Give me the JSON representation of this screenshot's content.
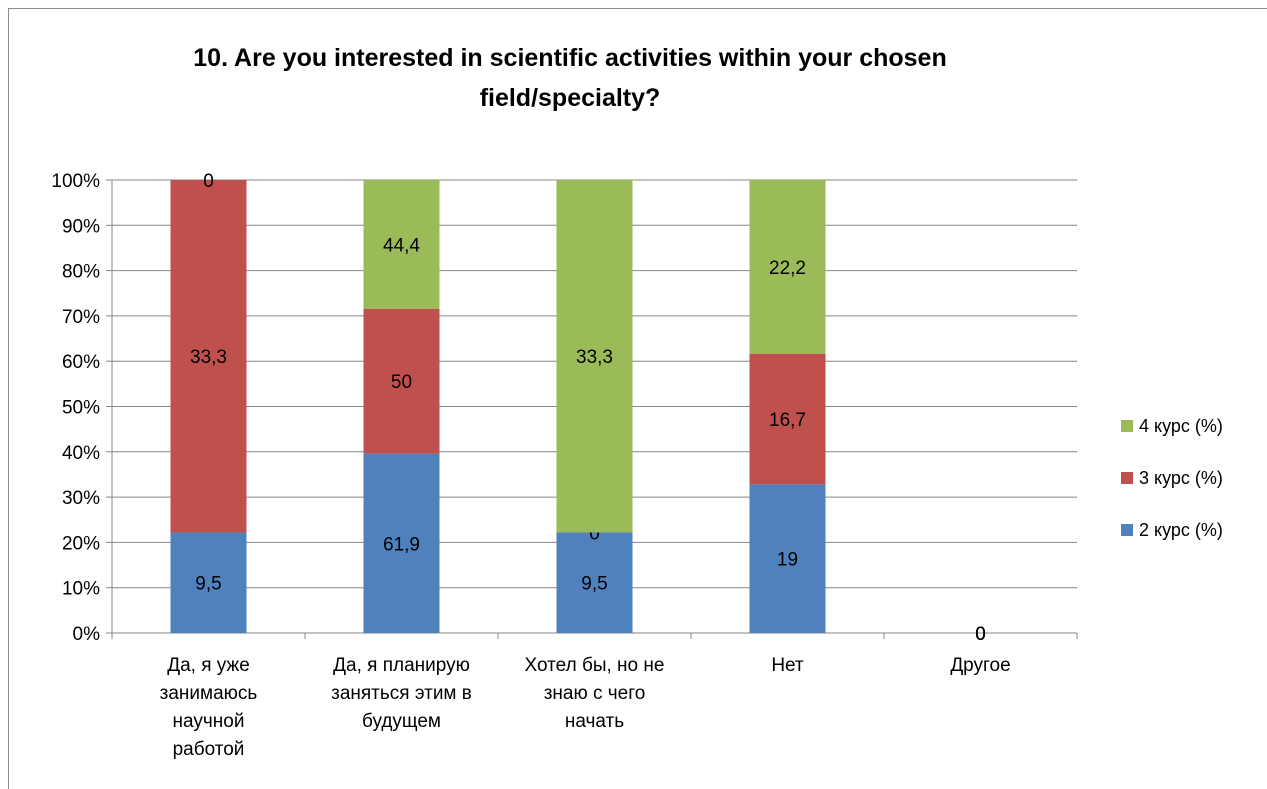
{
  "chart_data": {
    "type": "stacked_bar_100",
    "title": "10. Are you interested in scientific activities within your chosen field/specialty?",
    "categories": [
      "Да, я уже\nзанимаюсь\nнаучной\nработой",
      "Да, я планирую\nзаняться этим в\nбудущем",
      "Хотел бы, но не\nзнаю с чего\nначать",
      "Нет",
      "Другое"
    ],
    "series": [
      {
        "name": "2 курс (%)",
        "color": "#4f81bd",
        "values": [
          9.5,
          61.9,
          9.5,
          19,
          0
        ],
        "labels": [
          "9,5",
          "61,9",
          "9,5",
          "19",
          "0"
        ]
      },
      {
        "name": "3 курс (%)",
        "color": "#c0504d",
        "values": [
          33.3,
          50,
          0,
          16.7,
          0
        ],
        "labels": [
          "33,3",
          "50",
          "0",
          "16,7",
          "0"
        ]
      },
      {
        "name": "4 курс (%)",
        "color": "#9bbb59",
        "values": [
          0,
          44.4,
          33.3,
          22.2,
          0
        ],
        "labels": [
          "0",
          "44,4",
          "33,3",
          "22,2",
          "0"
        ]
      }
    ],
    "y_ticks": [
      "0%",
      "10%",
      "20%",
      "30%",
      "40%",
      "50%",
      "60%",
      "70%",
      "80%",
      "90%",
      "100%"
    ],
    "ylim": [
      0,
      100
    ],
    "grid": true,
    "legend_position": "right"
  }
}
